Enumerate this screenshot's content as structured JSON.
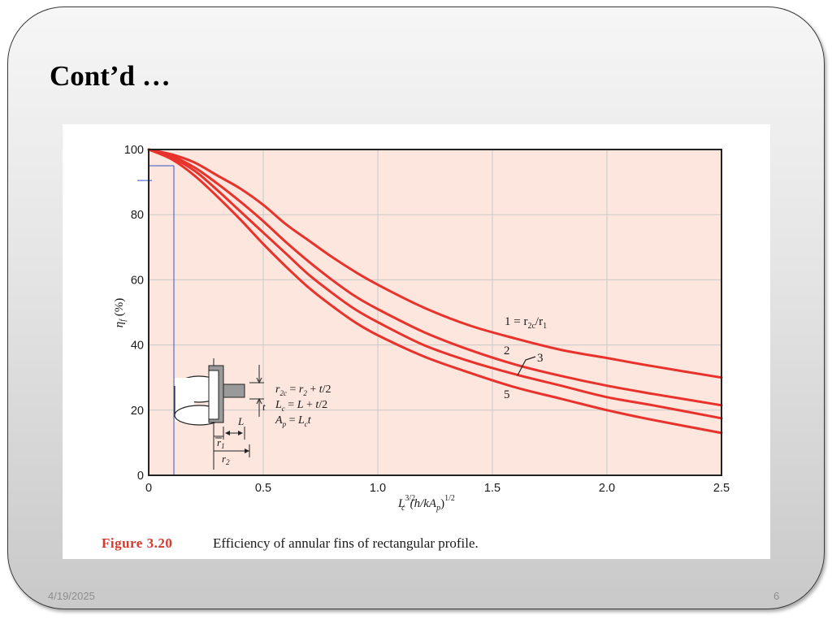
{
  "slide": {
    "title": "Cont’d …",
    "date": "4/19/2025",
    "page_number": "6"
  },
  "colors": {
    "plot_background": "#fce6dd",
    "curve": "#e8322c",
    "grid": "#c9c9c9",
    "guide_line": "#3355cc",
    "caption_figure": "#d33a2c"
  },
  "caption": {
    "figure_label": "Figure 3.20",
    "text": "Efficiency of annular fins of rectangular profile."
  },
  "inset": {
    "eq1": "r2c = r2 + t/2",
    "eq2": "Lc = L + t/2",
    "eq3": "Ap = Lc t",
    "label_L": "L",
    "label_t": "t",
    "label_r1": "r1",
    "label_r2": "r2"
  },
  "chart_data": {
    "type": "line",
    "xlabel": "Lc^3/2 (h/kAp)^1/2",
    "ylabel": "ηf (%)",
    "xlim": [
      0,
      2.5
    ],
    "ylim": [
      0,
      100
    ],
    "xticks": [
      "0",
      "0.5",
      "1.0",
      "1.5",
      "2.0",
      "2.5"
    ],
    "yticks": [
      "0",
      "20",
      "40",
      "60",
      "80",
      "100"
    ],
    "grid": true,
    "series": [
      {
        "name": "1 = r2c/r1",
        "x": [
          0,
          0.1,
          0.2,
          0.3,
          0.4,
          0.5,
          0.6,
          0.7,
          0.8,
          0.9,
          1.0,
          1.2,
          1.4,
          1.6,
          1.8,
          2.0,
          2.2,
          2.5
        ],
        "y": [
          100,
          98.5,
          96,
          92,
          88,
          83,
          77,
          72,
          67,
          62.5,
          58.5,
          51.5,
          46,
          42,
          38.5,
          36,
          33.5,
          30
        ]
      },
      {
        "name": "2",
        "x": [
          0,
          0.1,
          0.2,
          0.3,
          0.4,
          0.5,
          0.6,
          0.7,
          0.8,
          0.9,
          1.0,
          1.2,
          1.4,
          1.6,
          1.8,
          2.0,
          2.2,
          2.5
        ],
        "y": [
          100,
          98,
          94.5,
          89.5,
          84,
          78,
          71.5,
          65.5,
          60,
          55,
          51,
          44,
          38.5,
          34,
          30.5,
          27.5,
          25,
          21.5
        ]
      },
      {
        "name": "3",
        "x": [
          0,
          0.1,
          0.2,
          0.3,
          0.4,
          0.5,
          0.6,
          0.7,
          0.8,
          0.9,
          1.0,
          1.2,
          1.4,
          1.6,
          1.8,
          2.0,
          2.2,
          2.5
        ],
        "y": [
          100,
          97.5,
          93.5,
          87.5,
          81,
          74.5,
          68,
          61.5,
          56,
          51,
          47,
          40,
          35,
          31,
          27.5,
          24,
          21.5,
          17.5
        ]
      },
      {
        "name": "5",
        "x": [
          0,
          0.1,
          0.2,
          0.3,
          0.4,
          0.5,
          0.6,
          0.7,
          0.8,
          0.9,
          1.0,
          1.2,
          1.4,
          1.6,
          1.8,
          2.0,
          2.2,
          2.5
        ],
        "y": [
          100,
          97,
          92,
          85.5,
          78.5,
          71,
          64,
          57.5,
          52,
          47,
          43,
          36.5,
          31.5,
          27,
          23.5,
          20,
          17,
          13
        ]
      }
    ],
    "annotations": [
      {
        "text": "1 = r2c/r1",
        "series": 0
      },
      {
        "text": "2",
        "series": 1
      },
      {
        "text": "3",
        "series": 2
      },
      {
        "text": "5",
        "series": 3
      }
    ],
    "guide_line": {
      "x": 0.11,
      "y": 95
    }
  }
}
